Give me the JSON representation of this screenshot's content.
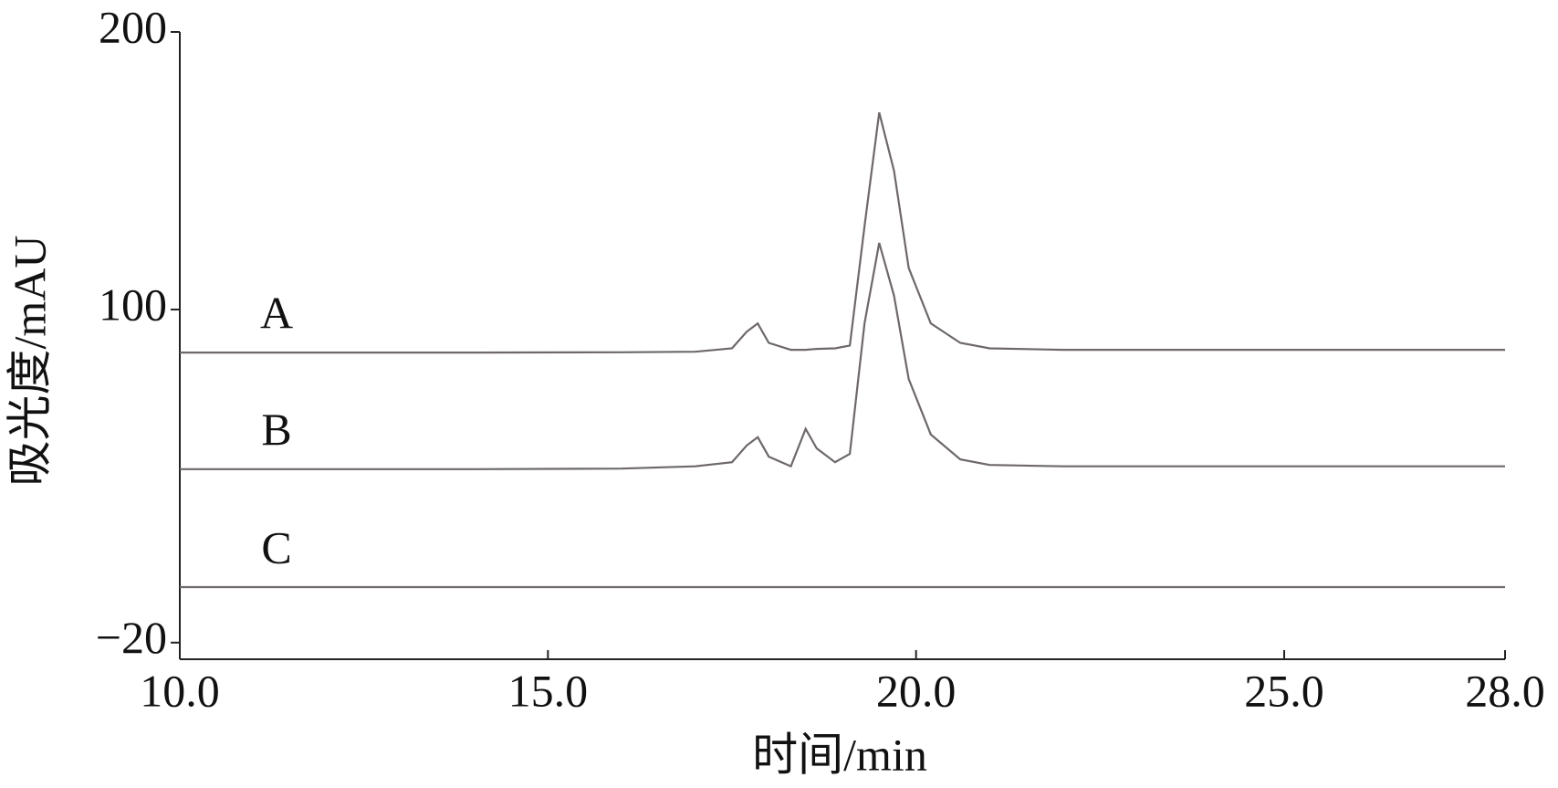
{
  "chart_data": {
    "type": "line",
    "x_label": "时间/min",
    "y_label": "吸光度/mAU",
    "x": [
      10,
      12,
      14,
      16,
      17,
      17.5,
      17.7,
      17.85,
      18.0,
      18.3,
      18.5,
      18.65,
      18.9,
      19.1,
      19.3,
      19.5,
      19.7,
      19.9,
      20.2,
      20.6,
      21.0,
      22,
      25,
      28
    ],
    "series": [
      {
        "name": "A",
        "color": "#6e6868",
        "values": [
          84.5,
          84.5,
          84.5,
          84.6,
          84.8,
          86,
          92,
          95,
          88,
          85.5,
          85.5,
          85.8,
          86,
          87,
          130,
          171,
          150,
          115,
          95,
          88,
          86,
          85.5,
          85.5,
          85.5
        ]
      },
      {
        "name": "B",
        "color": "#6e6868",
        "values": [
          42.5,
          42.5,
          42.5,
          42.7,
          43.5,
          45,
          51,
          54,
          47,
          43.5,
          57,
          50,
          45,
          48,
          95,
          124,
          105,
          75,
          55,
          46,
          44,
          43.5,
          43.5,
          43.5
        ]
      },
      {
        "name": "C",
        "color": "#6e6868",
        "values": [
          0,
          0,
          0,
          0,
          0,
          0,
          0,
          0,
          0,
          0,
          0,
          0,
          0,
          0,
          0,
          0,
          0,
          0,
          0,
          0,
          0,
          0,
          0,
          0
        ]
      }
    ],
    "xlim": [
      10,
      28
    ],
    "ylim": [
      -26,
      200
    ],
    "xticks": [
      {
        "value": 10,
        "label": "10.0"
      },
      {
        "value": 15,
        "label": "15.0"
      },
      {
        "value": 20,
        "label": "20.0"
      },
      {
        "value": 25,
        "label": "25.0"
      },
      {
        "value": 28,
        "label": "28.0"
      }
    ],
    "yticks": [
      {
        "value": -20,
        "label": "−20"
      },
      100,
      200
    ]
  }
}
